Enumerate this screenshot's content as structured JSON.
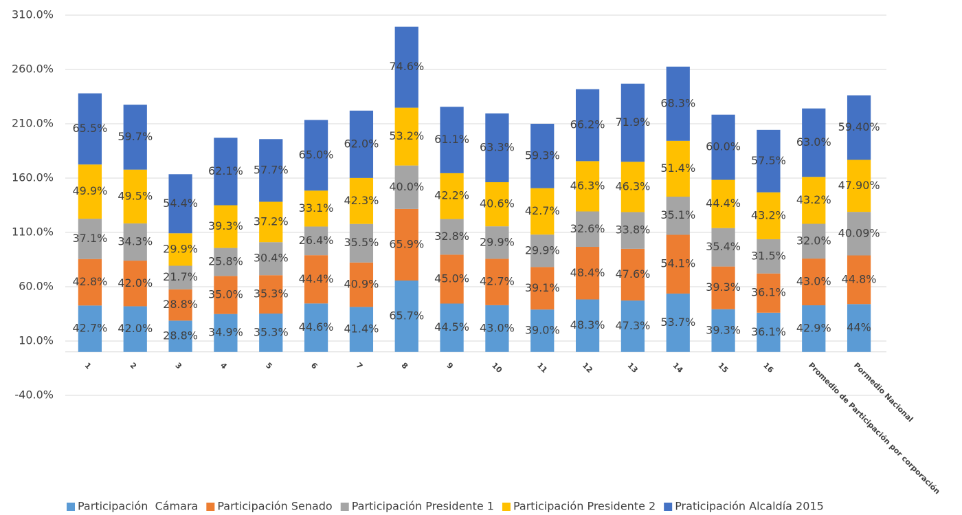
{
  "chart_data": {
    "type": "stacked_bar",
    "categories": [
      "1",
      "2",
      "3",
      "4",
      "5",
      "6",
      "7",
      "8",
      "9",
      "10",
      "11",
      "12",
      "13",
      "14",
      "15",
      "16",
      "Promedio de Participación por corporación",
      "Pormedio Nacional"
    ],
    "series": [
      {
        "name": "Participación  Cámara",
        "color": "#5b9bd5",
        "values": [
          42.7,
          42.0,
          28.8,
          34.9,
          35.3,
          44.6,
          41.4,
          65.7,
          44.5,
          43.0,
          39.0,
          48.3,
          47.3,
          53.7,
          39.3,
          36.1,
          42.9,
          44
        ],
        "value_labels": [
          "42.7%",
          "42.0%",
          "28.8%",
          "34.9%",
          "35.3%",
          "44.6%",
          "41.4%",
          "65.7%",
          "44.5%",
          "43.0%",
          "39.0%",
          "48.3%",
          "47.3%",
          "53.7%",
          "39.3%",
          "36.1%",
          "42.9%",
          "44%"
        ]
      },
      {
        "name": "Participación Senado",
        "color": "#ed7d31",
        "values": [
          42.8,
          42.0,
          28.8,
          35.0,
          35.3,
          44.4,
          40.9,
          65.9,
          45.0,
          42.7,
          39.1,
          48.4,
          47.6,
          54.1,
          39.3,
          36.1,
          43.0,
          44.8
        ],
        "value_labels": [
          "42.8%",
          "42.0%",
          "28.8%",
          "35.0%",
          "35.3%",
          "44.4%",
          "40.9%",
          "65.9%",
          "45.0%",
          "42.7%",
          "39.1%",
          "48.4%",
          "47.6%",
          "54.1%",
          "39.3%",
          "36.1%",
          "43.0%",
          "44.8%"
        ]
      },
      {
        "name": "Participación Presidente 1",
        "color": "#a5a5a5",
        "values": [
          37.1,
          34.3,
          21.7,
          25.8,
          30.4,
          26.4,
          35.5,
          40.0,
          32.8,
          29.9,
          29.9,
          32.6,
          33.8,
          35.1,
          35.4,
          31.5,
          32.0,
          40.09
        ],
        "value_labels": [
          "37.1%",
          "34.3%",
          "21.7%",
          "25.8%",
          "30.4%",
          "26.4%",
          "35.5%",
          "40.0%",
          "32.8%",
          "29.9%",
          "29.9%",
          "32.6%",
          "33.8%",
          "35.1%",
          "35.4%",
          "31.5%",
          "32.0%",
          "40.09%"
        ]
      },
      {
        "name": "Participación Presidente 2",
        "color": "#ffc000",
        "values": [
          49.9,
          49.5,
          29.9,
          39.3,
          37.2,
          33.1,
          42.3,
          53.2,
          42.2,
          40.6,
          42.7,
          46.3,
          46.3,
          51.4,
          44.4,
          43.2,
          43.2,
          47.9
        ],
        "value_labels": [
          "49.9%",
          "49.5%",
          "29.9%",
          "39.3%",
          "37.2%",
          "33.1%",
          "42.3%",
          "53.2%",
          "42.2%",
          "40.6%",
          "42.7%",
          "46.3%",
          "46.3%",
          "51.4%",
          "44.4%",
          "43.2%",
          "43.2%",
          "47.90%"
        ]
      },
      {
        "name": "Praticipación Alcaldía 2015",
        "color": "#4472c4",
        "values": [
          65.5,
          59.7,
          54.4,
          62.1,
          57.7,
          65.0,
          62.0,
          74.6,
          61.1,
          63.3,
          59.3,
          66.2,
          71.9,
          68.3,
          60.0,
          57.5,
          63.0,
          59.4
        ],
        "value_labels": [
          "65.5%",
          "59.7%",
          "54.4%",
          "62.1%",
          "57.7%",
          "65.0%",
          "62.0%",
          "74.6%",
          "61.1%",
          "63.3%",
          "59.3%",
          "66.2%",
          "71.9%",
          "68.3%",
          "60.0%",
          "57.5%",
          "63.0%",
          "59.40%"
        ]
      }
    ],
    "ylim": [
      -40,
      310
    ],
    "yticks": [
      {
        "value": -40,
        "label": "-40.0%"
      },
      {
        "value": 10,
        "label": "10.0%"
      },
      {
        "value": 60,
        "label": "60.0%"
      },
      {
        "value": 110,
        "label": "110.0%"
      },
      {
        "value": 160,
        "label": "160.0%"
      },
      {
        "value": 210,
        "label": "210.0%"
      },
      {
        "value": 260,
        "label": "260.0%"
      },
      {
        "value": 310,
        "label": "310.0%"
      }
    ],
    "grid": true,
    "legend": "bottom"
  }
}
